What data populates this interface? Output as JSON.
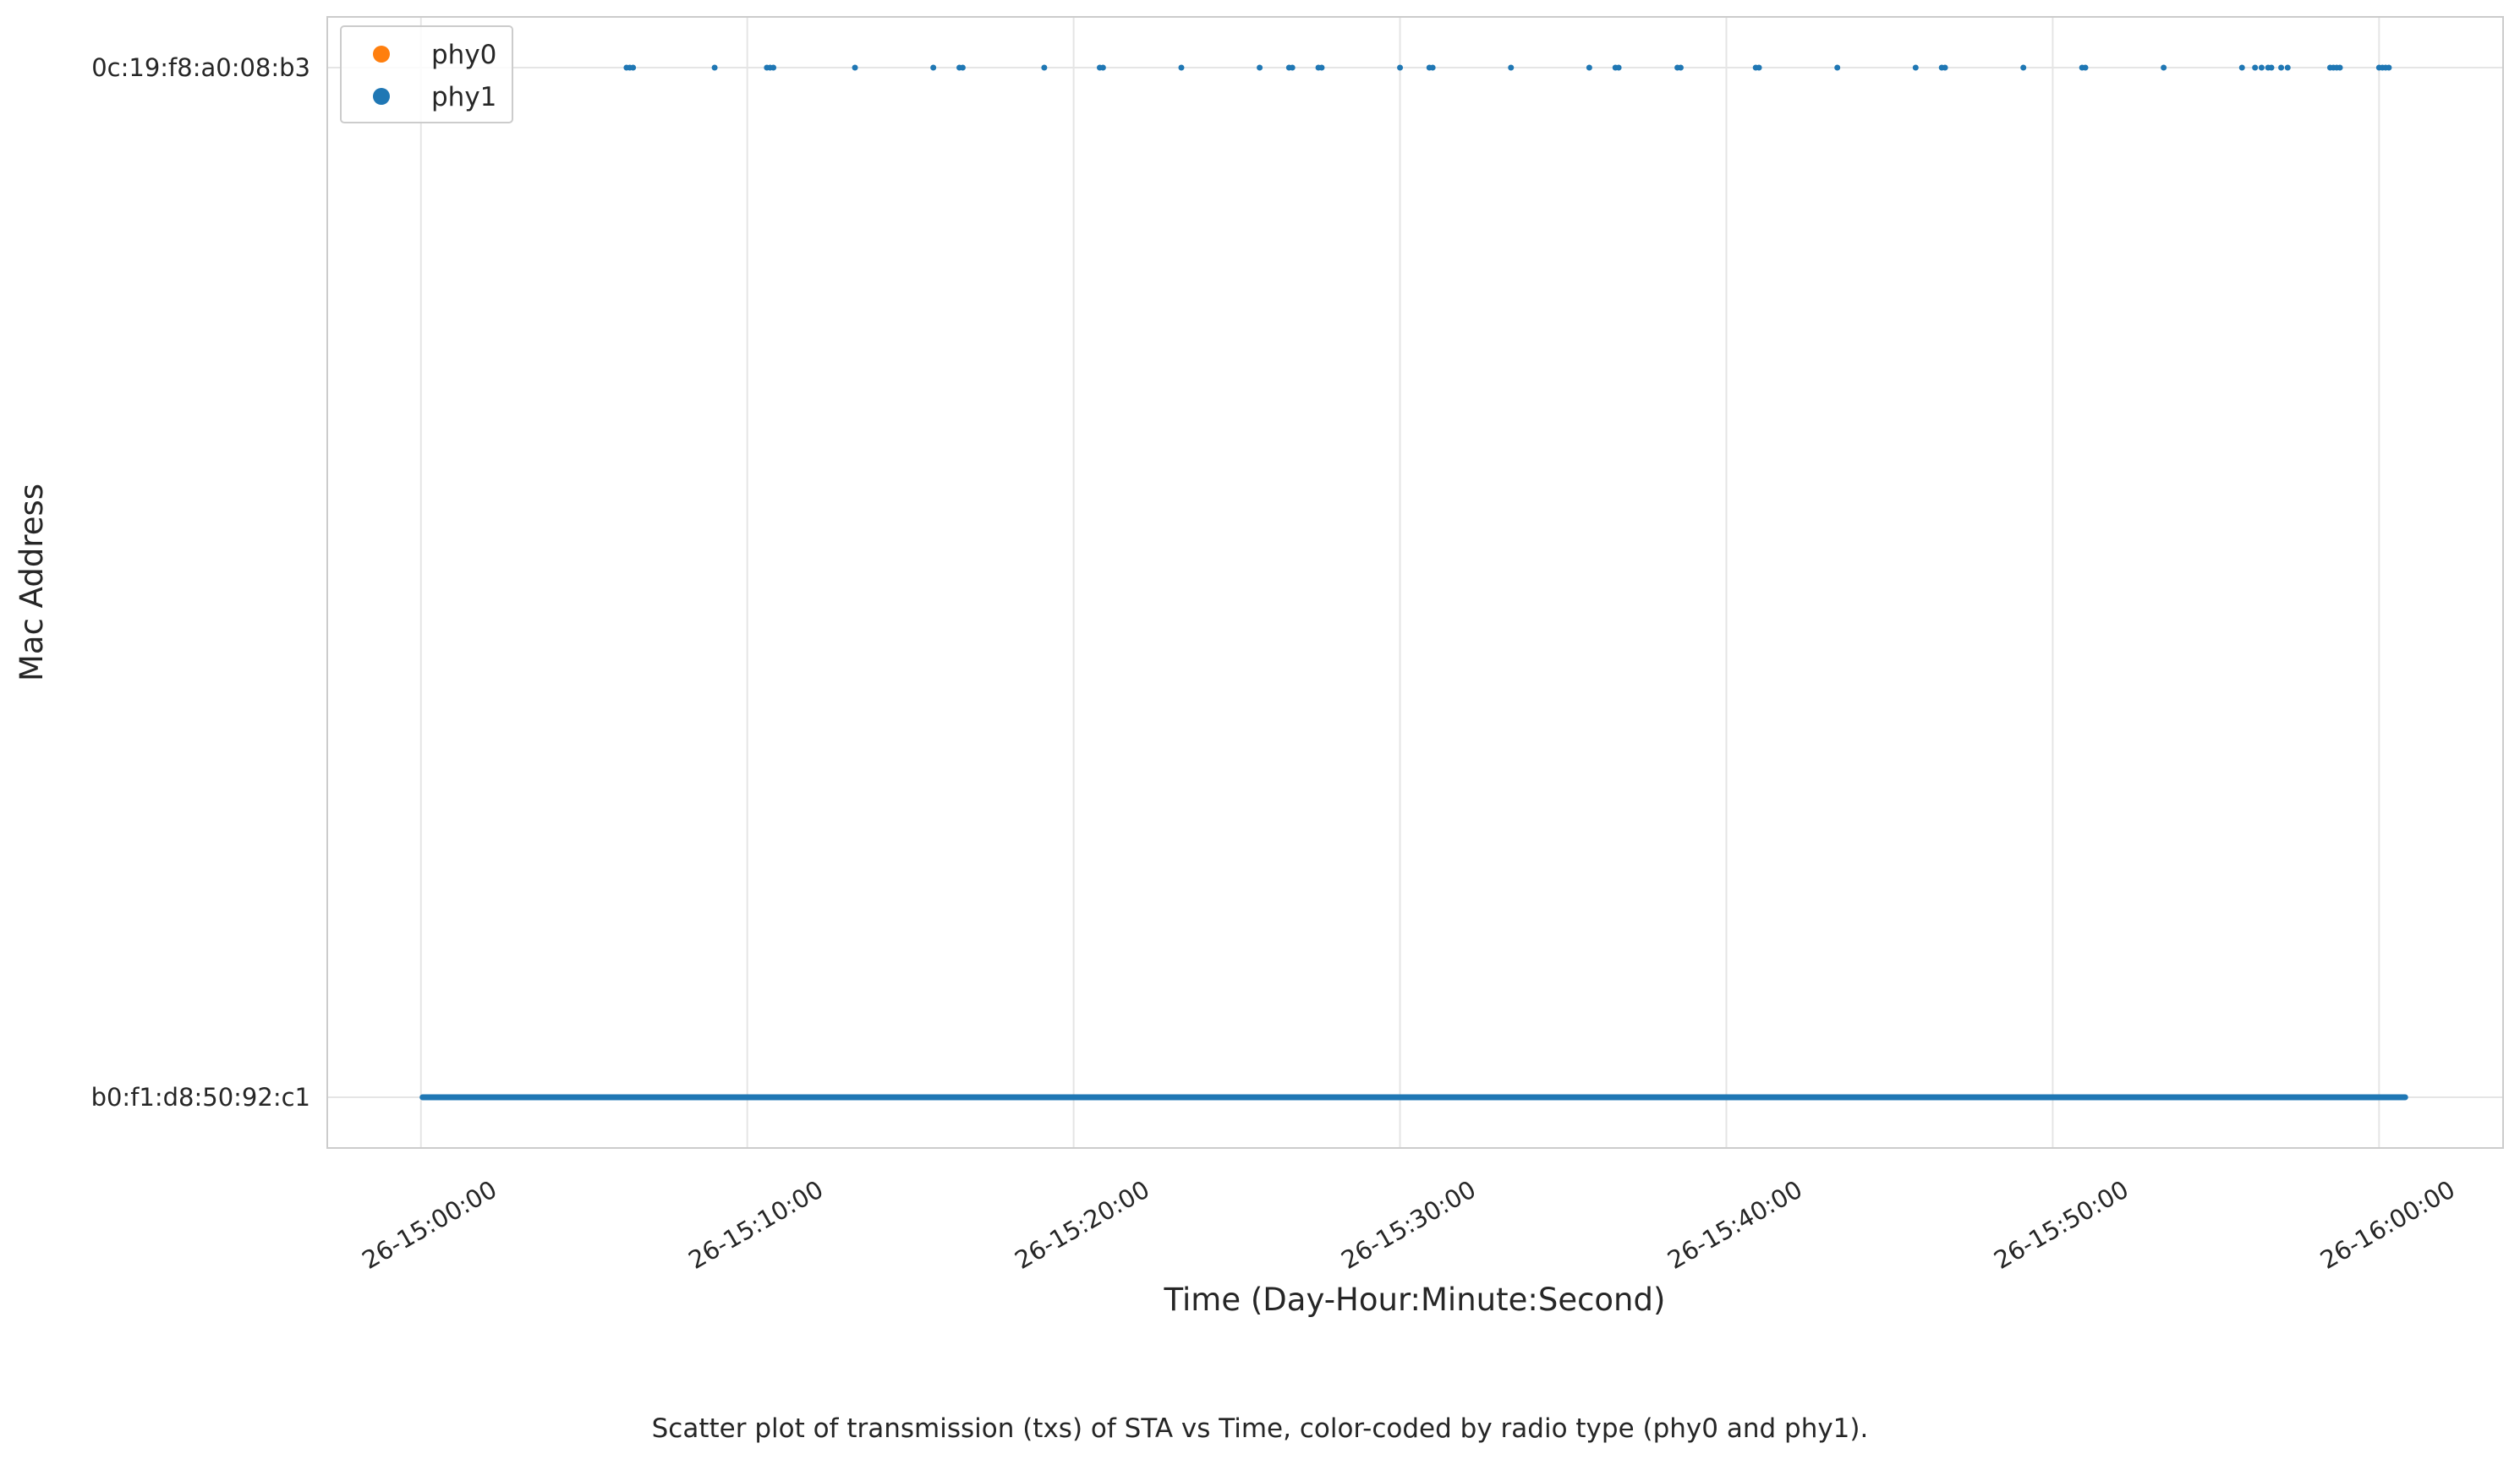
{
  "chart_data": {
    "type": "scatter",
    "title": "",
    "xlabel": "Time (Day-Hour:Minute:Second)",
    "ylabel": "Mac Address",
    "caption": "Scatter plot of transmission (txs) of STA vs Time, color-coded by radio type (phy0 and phy1).",
    "x_tick_labels": [
      "26-15:00:00",
      "26-15:10:00",
      "26-15:20:00",
      "26-15:30:00",
      "26-15:40:00",
      "26-15:50:00",
      "26-16:00:00"
    ],
    "x_tick_minutes": [
      0,
      10,
      20,
      30,
      40,
      50,
      60
    ],
    "xlim_minutes": [
      -2.87,
      63.8
    ],
    "categories": [
      "b0:f1:d8:50:92:c1",
      "0c:19:f8:a0:08:b3"
    ],
    "grid": true,
    "legend_position": "upper-left",
    "legend": [
      {
        "name": "phy0",
        "color": "#ff7f0e"
      },
      {
        "name": "phy1",
        "color": "#1f77b4"
      }
    ],
    "series": [
      {
        "name": "phy0",
        "color": "#ff7f0e",
        "points": []
      },
      {
        "name": "phy1",
        "color": "#1f77b4",
        "segments": [
          {
            "category": "b0:f1:d8:50:92:c1",
            "start_minute": 0.05,
            "end_minute": 60.8
          }
        ],
        "points": [
          {
            "category": "0c:19:f8:a0:08:b3",
            "minutes": [
              6.3,
              6.4,
              6.5,
              9.0,
              10.6,
              10.7,
              10.8,
              13.3,
              15.7,
              16.5,
              16.6,
              19.1,
              20.8,
              20.9,
              23.3,
              25.7,
              26.6,
              26.7,
              27.5,
              27.6,
              30.0,
              30.9,
              31.0,
              33.4,
              35.8,
              36.6,
              36.7,
              38.5,
              38.6,
              40.9,
              41.0,
              43.4,
              45.8,
              46.6,
              46.7,
              49.1,
              50.9,
              51.0,
              53.4,
              55.8,
              56.2,
              56.4,
              56.6,
              56.7,
              57.0,
              57.2,
              58.5,
              58.6,
              58.7,
              58.8,
              60.0,
              60.1,
              60.2,
              60.3
            ]
          }
        ]
      }
    ]
  }
}
